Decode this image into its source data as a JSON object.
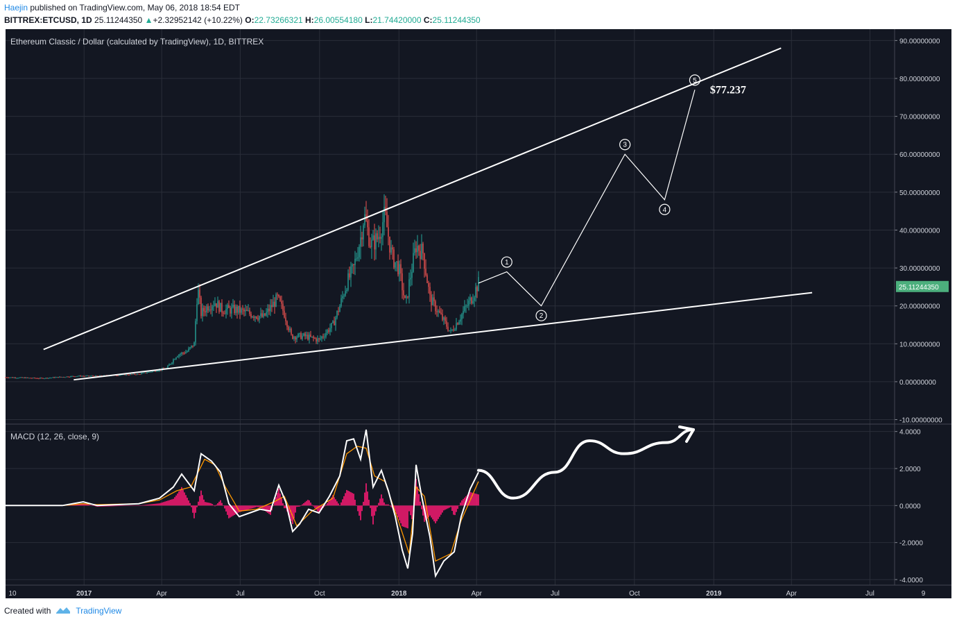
{
  "header": {
    "author": "Haejin",
    "published_text": "published on TradingView.com, May 06, 2018 18:54 EDT",
    "symbol": "BITTREX:ETCUSD, 1D",
    "last": "25.11244350",
    "change_arrow": "▲",
    "change": "+2.32952142 (+10.22%)",
    "o_label": "O:",
    "o_value": "22.73266321",
    "h_label": "H:",
    "h_value": "26.00554180",
    "l_label": "L:",
    "l_value": "21.74420000",
    "c_label": "C:",
    "c_value": "25.11244350"
  },
  "footer": {
    "created_with": "Created with",
    "brand": "TradingView"
  },
  "colors": {
    "background": "#131722",
    "grid": "#2a2e39",
    "up": "#26a69a",
    "down": "#ef5350",
    "price_tag": "#4caf7d",
    "macd_line": "#ffffff",
    "signal_line": "#ff9800",
    "histogram": "#ff1a75",
    "annotation": "#ffffff"
  },
  "chart_data": {
    "type": "candlestick",
    "title": "Ethereum Classic / Dollar (calculated by TradingView), 1D, BITTREX",
    "price_axis": {
      "ticks": [
        "90.00000000",
        "80.00000000",
        "70.00000000",
        "60.00000000",
        "50.00000000",
        "40.00000000",
        "30.00000000",
        "20.00000000",
        "10.00000000",
        "0.00000000",
        "-10.00000000"
      ],
      "range": [
        -11,
        93
      ],
      "last_price_label": "25.11244350",
      "last_price": 25.11
    },
    "time_axis": {
      "labels": [
        "10",
        "2017",
        "Apr",
        "Jul",
        "Oct",
        "2018",
        "Apr",
        "Jul",
        "Oct",
        "2019",
        "Apr",
        "Jul",
        "9"
      ],
      "bold": [
        "2017",
        "2018",
        "2019"
      ]
    },
    "price_path": [
      [
        0,
        1.2
      ],
      [
        60,
        0.9
      ],
      [
        110,
        1.5
      ],
      [
        140,
        1.5
      ],
      [
        200,
        2.0
      ],
      [
        240,
        3.5
      ],
      [
        255,
        7
      ],
      [
        270,
        8
      ],
      [
        280,
        10
      ],
      [
        285,
        25
      ],
      [
        290,
        18
      ],
      [
        300,
        20
      ],
      [
        310,
        21
      ],
      [
        320,
        19
      ],
      [
        340,
        19
      ],
      [
        360,
        18
      ],
      [
        380,
        17
      ],
      [
        400,
        22
      ],
      [
        410,
        18
      ],
      [
        420,
        12
      ],
      [
        440,
        12
      ],
      [
        460,
        11
      ],
      [
        470,
        13
      ],
      [
        480,
        15
      ],
      [
        490,
        20
      ],
      [
        500,
        26
      ],
      [
        510,
        30
      ],
      [
        520,
        38
      ],
      [
        525,
        44
      ],
      [
        535,
        36
      ],
      [
        545,
        38
      ],
      [
        555,
        44
      ],
      [
        565,
        33
      ],
      [
        575,
        30
      ],
      [
        585,
        20
      ],
      [
        590,
        26
      ],
      [
        600,
        36
      ],
      [
        610,
        34
      ],
      [
        620,
        22
      ],
      [
        630,
        19
      ],
      [
        640,
        16
      ],
      [
        650,
        13
      ],
      [
        660,
        16
      ],
      [
        670,
        19
      ],
      [
        680,
        22
      ],
      [
        690,
        26
      ]
    ],
    "channel_upper": {
      "from": [
        "2016-11-15",
        8.5
      ],
      "to": [
        "2019-03-20",
        88
      ]
    },
    "channel_lower": {
      "from": [
        "2016-12-20",
        0.5
      ],
      "to": [
        "2019-04-25",
        23.5
      ]
    },
    "wave_projection": {
      "points": [
        [
          "2018-05-06",
          29
        ],
        [
          "2018-06-15",
          20
        ],
        [
          "2018-09-20",
          60
        ],
        [
          "2018-11-05",
          48
        ],
        [
          "2018-12-10",
          77
        ]
      ],
      "labels": [
        "1",
        "2",
        "3",
        "4",
        "5"
      ],
      "target_label": "$77.237"
    },
    "macd": {
      "title": "MACD (12, 26, close, 9)",
      "ticks": [
        "4.0000",
        "2.0000",
        "0.0000",
        "-2.0000",
        "-4.0000"
      ],
      "range": [
        -4.3,
        4.4
      ],
      "macd_path": [
        [
          0,
          0
        ],
        [
          90,
          0
        ],
        [
          120,
          0.2
        ],
        [
          140,
          0
        ],
        [
          200,
          0.1
        ],
        [
          230,
          0.4
        ],
        [
          250,
          1.0
        ],
        [
          262,
          1.7
        ],
        [
          272,
          1.2
        ],
        [
          280,
          0.8
        ],
        [
          290,
          2.8
        ],
        [
          305,
          2.4
        ],
        [
          318,
          1.8
        ],
        [
          330,
          0.1
        ],
        [
          345,
          -0.6
        ],
        [
          360,
          -0.4
        ],
        [
          375,
          -0.2
        ],
        [
          390,
          -0.3
        ],
        [
          402,
          1.1
        ],
        [
          412,
          0.2
        ],
        [
          422,
          -1.4
        ],
        [
          432,
          -1.0
        ],
        [
          445,
          -0.2
        ],
        [
          460,
          -0.4
        ],
        [
          475,
          0.5
        ],
        [
          490,
          1.6
        ],
        [
          500,
          3.5
        ],
        [
          510,
          3.6
        ],
        [
          520,
          2.5
        ],
        [
          528,
          4.1
        ],
        [
          538,
          1.0
        ],
        [
          550,
          1.9
        ],
        [
          560,
          0.8
        ],
        [
          570,
          -0.6
        ],
        [
          580,
          -2.4
        ],
        [
          588,
          -3.4
        ],
        [
          595,
          -1.5
        ],
        [
          600,
          2.2
        ],
        [
          608,
          0.5
        ],
        [
          620,
          -1.7
        ],
        [
          628,
          -3.8
        ],
        [
          640,
          -3.0
        ],
        [
          655,
          -2.5
        ],
        [
          665,
          -0.6
        ],
        [
          678,
          0.9
        ],
        [
          690,
          1.8
        ]
      ],
      "signal_path": [
        [
          0,
          0
        ],
        [
          90,
          0
        ],
        [
          120,
          0.1
        ],
        [
          140,
          0.05
        ],
        [
          200,
          0.1
        ],
        [
          230,
          0.3
        ],
        [
          255,
          0.8
        ],
        [
          275,
          1.0
        ],
        [
          295,
          2.5
        ],
        [
          310,
          2.2
        ],
        [
          325,
          1.0
        ],
        [
          345,
          -0.3
        ],
        [
          370,
          -0.2
        ],
        [
          395,
          0.2
        ],
        [
          410,
          0.5
        ],
        [
          428,
          -1.1
        ],
        [
          450,
          -0.3
        ],
        [
          480,
          0.4
        ],
        [
          500,
          2.8
        ],
        [
          515,
          3.2
        ],
        [
          528,
          3.1
        ],
        [
          540,
          1.6
        ],
        [
          555,
          1.3
        ],
        [
          575,
          -0.9
        ],
        [
          590,
          -2.6
        ],
        [
          600,
          1.0
        ],
        [
          612,
          0.5
        ],
        [
          628,
          -3.0
        ],
        [
          650,
          -2.6
        ],
        [
          665,
          -0.8
        ],
        [
          690,
          1.3
        ]
      ],
      "projection": [
        [
          690,
          1.9
        ],
        [
          740,
          0.4
        ],
        [
          800,
          1.8
        ],
        [
          850,
          3.5
        ],
        [
          900,
          2.8
        ],
        [
          960,
          3.4
        ],
        [
          1000,
          4.1
        ]
      ]
    }
  }
}
